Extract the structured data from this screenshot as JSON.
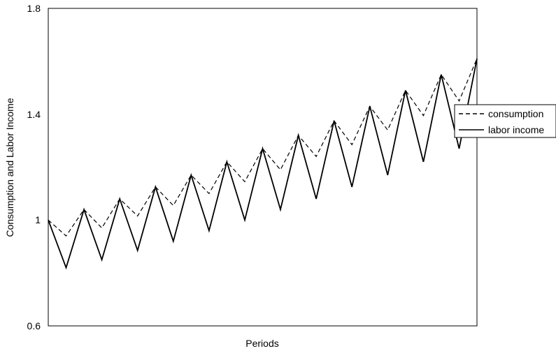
{
  "chart_data": {
    "type": "line",
    "title": "",
    "xlabel": "Periods",
    "ylabel": "Consumption and Labor Income",
    "ylim": [
      0.6,
      1.8
    ],
    "yticks": [
      "0.6",
      "1",
      "1.4",
      "1.8"
    ],
    "grid": false,
    "legend_position": "right",
    "x": [
      0,
      1,
      2,
      3,
      4,
      5,
      6,
      7,
      8,
      9,
      10,
      11,
      12,
      13,
      14,
      15,
      16,
      17,
      18,
      19,
      20,
      21,
      22,
      23,
      24
    ],
    "series": [
      {
        "name": "consumption",
        "style": "dashed",
        "color": "#000000",
        "values": [
          1.0,
          0.94,
          1.04,
          0.97,
          1.08,
          1.015,
          1.125,
          1.055,
          1.17,
          1.1,
          1.22,
          1.145,
          1.27,
          1.19,
          1.32,
          1.24,
          1.375,
          1.285,
          1.43,
          1.34,
          1.49,
          1.395,
          1.55,
          1.45,
          1.61
        ]
      },
      {
        "name": "labor income",
        "style": "solid",
        "color": "#000000",
        "values": [
          1.0,
          0.82,
          1.04,
          0.85,
          1.08,
          0.885,
          1.125,
          0.92,
          1.17,
          0.96,
          1.22,
          1.0,
          1.27,
          1.04,
          1.32,
          1.08,
          1.375,
          1.125,
          1.43,
          1.17,
          1.49,
          1.22,
          1.55,
          1.27,
          1.61
        ]
      }
    ]
  }
}
